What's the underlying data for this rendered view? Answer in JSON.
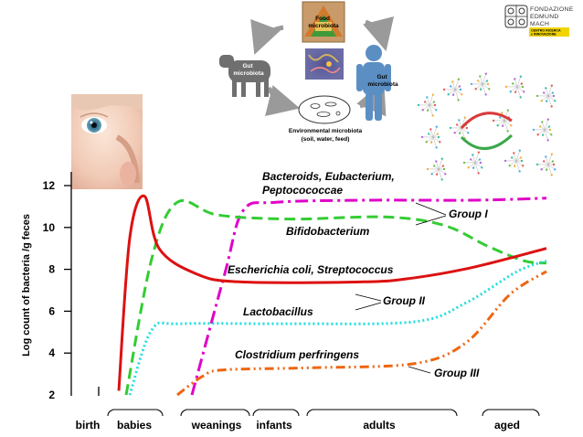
{
  "header": {
    "diagram": {
      "food_label": "Food\nmicrobiota",
      "gut_animal_label": "Gut\nmicrobiota",
      "gut_human_label": "Gut\nmicrobiota",
      "env_label": "Environmental microbiota",
      "env_sub_label": "(soil, water, feed)"
    },
    "logo": {
      "line1": "FONDAZIONE",
      "line2": "EDMUND",
      "line3": "MACH",
      "line4": "CENTRO RICERCA",
      "line5": "e INNOVAZIONE",
      "accent_color": "#f2d400"
    }
  },
  "chart_data": {
    "type": "line",
    "ylabel": "Log count of bacteria /g feces",
    "yticks": [
      2,
      4,
      6,
      8,
      10,
      12
    ],
    "ylim": [
      2,
      12.8
    ],
    "stages": [
      "birth",
      "babies",
      "weanings",
      "infants",
      "adults",
      "aged"
    ],
    "annotations": {
      "bacteroids_line1": "Bacteroids, Eubacterium,",
      "bacteroids_line2": "Peptocococcae",
      "bifidobacterium": "Bifidobacterium",
      "ecoli": "Escherichia coli, Streptococcus",
      "lactobacillus": "Lactobacillus",
      "clostridium": "Clostridium perfringens",
      "group1": "Group I",
      "group2": "Group II",
      "group3": "Group III"
    },
    "series": [
      {
        "name": "Bacteroids, Eubacterium, Peptocococcae",
        "color": "#e000c8",
        "style": "dash-dot",
        "points": [
          [
            1.15,
            2
          ],
          [
            1.6,
            7.8
          ],
          [
            1.85,
            10.8
          ],
          [
            2.3,
            11.2
          ],
          [
            3.5,
            11.3
          ],
          [
            5.0,
            11.3
          ],
          [
            6.0,
            11.4
          ]
        ]
      },
      {
        "name": "Bifidobacterium",
        "color": "#33cc33",
        "style": "dash",
        "points": [
          [
            0.25,
            2
          ],
          [
            0.6,
            8.5
          ],
          [
            0.95,
            11.2
          ],
          [
            1.5,
            10.6
          ],
          [
            2.5,
            10.4
          ],
          [
            3.8,
            10.5
          ],
          [
            4.6,
            10.1
          ],
          [
            5.2,
            9.1
          ],
          [
            5.7,
            8.4
          ],
          [
            6.0,
            8.3
          ]
        ]
      },
      {
        "name": "Escherichia coli, Streptococcus",
        "color": "#dd1111",
        "style": "solid",
        "points": [
          [
            0.15,
            2.2
          ],
          [
            0.3,
            9.5
          ],
          [
            0.5,
            11.5
          ],
          [
            0.7,
            9.0
          ],
          [
            1.2,
            7.8
          ],
          [
            1.8,
            7.4
          ],
          [
            3.5,
            7.4
          ],
          [
            4.2,
            7.6
          ],
          [
            5.0,
            8.1
          ],
          [
            6.0,
            9.0
          ]
        ]
      },
      {
        "name": "Lactobacillus",
        "color": "#22dddd",
        "style": "dot",
        "points": [
          [
            0.3,
            2
          ],
          [
            0.6,
            5.1
          ],
          [
            1.0,
            5.4
          ],
          [
            2.5,
            5.4
          ],
          [
            4.2,
            5.5
          ],
          [
            4.9,
            6.4
          ],
          [
            5.6,
            7.9
          ],
          [
            6.0,
            8.4
          ]
        ]
      },
      {
        "name": "Clostridium perfringens",
        "color": "#ee6611",
        "style": "dash-dot-dot",
        "points": [
          [
            0.95,
            2
          ],
          [
            1.3,
            2.9
          ],
          [
            1.6,
            3.2
          ],
          [
            2.8,
            3.3
          ],
          [
            4.2,
            3.5
          ],
          [
            4.9,
            4.5
          ],
          [
            5.5,
            6.8
          ],
          [
            6.0,
            7.9
          ]
        ]
      }
    ]
  }
}
